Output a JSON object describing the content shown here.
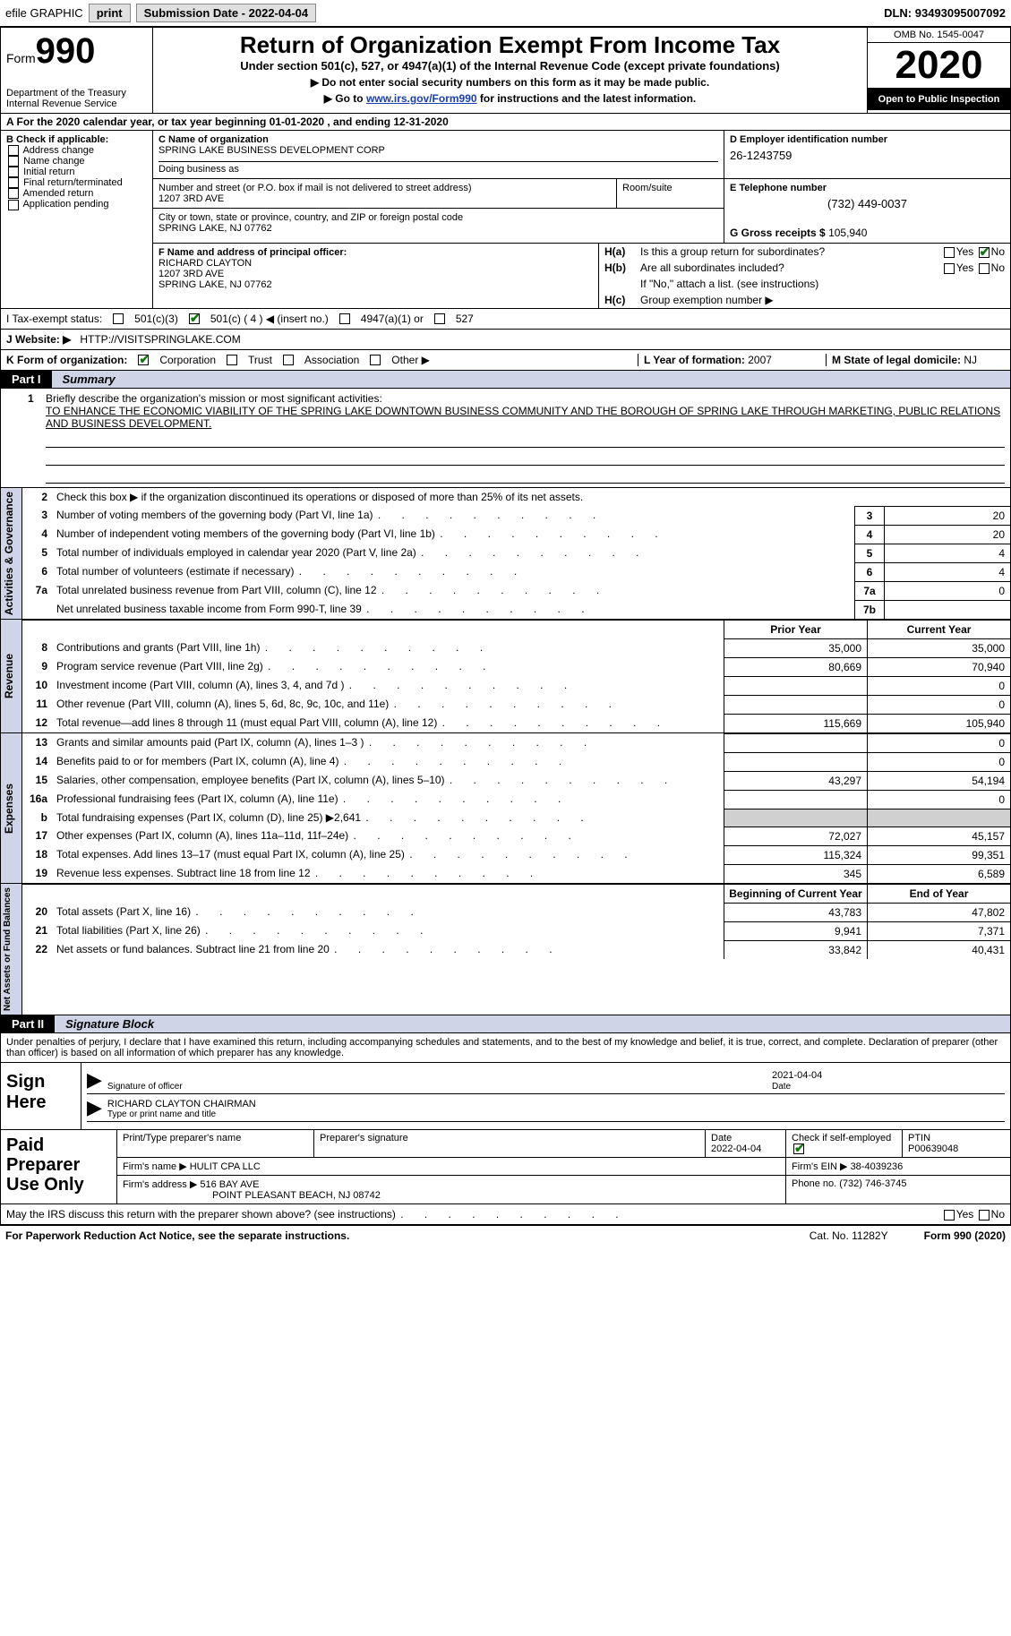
{
  "topbar": {
    "efile": "efile GRAPHIC",
    "print": "print",
    "submission_label": "Submission Date - ",
    "submission_date": "2022-04-04",
    "dln_label": "DLN: ",
    "dln": "93493095007092"
  },
  "header": {
    "form_prefix": "Form",
    "form_number": "990",
    "dept": "Department of the Treasury",
    "irs": "Internal Revenue Service",
    "title": "Return of Organization Exempt From Income Tax",
    "subtitle": "Under section 501(c), 527, or 4947(a)(1) of the Internal Revenue Code (except private foundations)",
    "note1": "▶ Do not enter social security numbers on this form as it may be made public.",
    "note2_prefix": "▶ Go to ",
    "note2_link": "www.irs.gov/Form990",
    "note2_suffix": " for instructions and the latest information.",
    "omb": "OMB No. 1545-0047",
    "year": "2020",
    "open": "Open to Public Inspection"
  },
  "rowA": "A For the 2020 calendar year, or tax year beginning 01-01-2020    , and ending 12-31-2020",
  "secB": {
    "hdr": "B Check if applicable:",
    "opts": [
      "Address change",
      "Name change",
      "Initial return",
      "Final return/terminated",
      "Amended return",
      "Application pending"
    ]
  },
  "secC": {
    "name_lbl": "C Name of organization",
    "name": "SPRING LAKE BUSINESS DEVELOPMENT CORP",
    "dba_lbl": "Doing business as",
    "addr_lbl": "Number and street (or P.O. box if mail is not delivered to street address)",
    "addr": "1207 3RD AVE",
    "room_lbl": "Room/suite",
    "city_lbl": "City or town, state or province, country, and ZIP or foreign postal code",
    "city": "SPRING LAKE, NJ  07762"
  },
  "secD": {
    "lbl": "D Employer identification number",
    "val": "26-1243759"
  },
  "secE": {
    "lbl": "E Telephone number",
    "val": "(732) 449-0037"
  },
  "secG": {
    "lbl": "G Gross receipts $ ",
    "val": "105,940"
  },
  "secF": {
    "lbl": "F Name and address of principal officer:",
    "name": "RICHARD CLAYTON",
    "addr1": "1207 3RD AVE",
    "addr2": "SPRING LAKE, NJ  07762"
  },
  "secH": {
    "a_lbl": "H(a)",
    "a_txt": "Is this a group return for subordinates?",
    "b_lbl": "H(b)",
    "b_txt": "Are all subordinates included?",
    "b_note": "If \"No,\" attach a list. (see instructions)",
    "c_lbl": "H(c)",
    "c_txt": "Group exemption number ▶",
    "yes": "Yes",
    "no": "No"
  },
  "lineI": {
    "lbl": "I    Tax-exempt status:",
    "o1": "501(c)(3)",
    "o2": "501(c) ( 4 ) ◀ (insert no.)",
    "o3": "4947(a)(1) or",
    "o4": "527"
  },
  "lineJ": {
    "lbl": "J   Website: ▶  ",
    "val": "HTTP://VISITSPRINGLAKE.COM"
  },
  "lineK": {
    "lbl": "K Form of organization:",
    "o1": "Corporation",
    "o2": "Trust",
    "o3": "Association",
    "o4": "Other ▶"
  },
  "lineL": {
    "lbl": "L Year of formation: ",
    "val": "2007"
  },
  "lineM": {
    "lbl": "M State of legal domicile: ",
    "val": "NJ"
  },
  "part1": {
    "tag": "Part I",
    "title": "Summary"
  },
  "mission": {
    "num": "1",
    "lead": "Briefly describe the organization's mission or most significant activities:",
    "txt": "TO ENHANCE THE ECONOMIC VIABILITY OF THE SPRING LAKE DOWNTOWN BUSINESS COMMUNITY AND THE BOROUGH OF SPRING LAKE THROUGH MARKETING, PUBLIC RELATIONS AND BUSINESS DEVELOPMENT."
  },
  "gov": {
    "label": "Activities & Governance",
    "l2": "Check this box ▶        if the organization discontinued its operations or disposed of more than 25% of its net assets.",
    "rows": [
      {
        "n": "3",
        "d": "Number of voting members of the governing body (Part VI, line 1a)",
        "box": "3",
        "v": "20"
      },
      {
        "n": "4",
        "d": "Number of independent voting members of the governing body (Part VI, line 1b)",
        "box": "4",
        "v": "20"
      },
      {
        "n": "5",
        "d": "Total number of individuals employed in calendar year 2020 (Part V, line 2a)",
        "box": "5",
        "v": "4"
      },
      {
        "n": "6",
        "d": "Total number of volunteers (estimate if necessary)",
        "box": "6",
        "v": "4"
      },
      {
        "n": "7a",
        "d": "Total unrelated business revenue from Part VIII, column (C), line 12",
        "box": "7a",
        "v": "0"
      },
      {
        "n": "",
        "d": "Net unrelated business taxable income from Form 990-T, line 39",
        "box": "7b",
        "v": ""
      }
    ]
  },
  "cols": {
    "prior": "Prior Year",
    "current": "Current Year",
    "begin": "Beginning of Current Year",
    "end": "End of Year"
  },
  "rev": {
    "label": "Revenue",
    "rows": [
      {
        "n": "8",
        "d": "Contributions and grants (Part VIII, line 1h)",
        "p": "35,000",
        "c": "35,000"
      },
      {
        "n": "9",
        "d": "Program service revenue (Part VIII, line 2g)",
        "p": "80,669",
        "c": "70,940"
      },
      {
        "n": "10",
        "d": "Investment income (Part VIII, column (A), lines 3, 4, and 7d )",
        "p": "",
        "c": "0"
      },
      {
        "n": "11",
        "d": "Other revenue (Part VIII, column (A), lines 5, 6d, 8c, 9c, 10c, and 11e)",
        "p": "",
        "c": "0"
      },
      {
        "n": "12",
        "d": "Total revenue—add lines 8 through 11 (must equal Part VIII, column (A), line 12)",
        "p": "115,669",
        "c": "105,940"
      }
    ]
  },
  "exp": {
    "label": "Expenses",
    "rows": [
      {
        "n": "13",
        "d": "Grants and similar amounts paid (Part IX, column (A), lines 1–3 )",
        "p": "",
        "c": "0"
      },
      {
        "n": "14",
        "d": "Benefits paid to or for members (Part IX, column (A), line 4)",
        "p": "",
        "c": "0"
      },
      {
        "n": "15",
        "d": "Salaries, other compensation, employee benefits (Part IX, column (A), lines 5–10)",
        "p": "43,297",
        "c": "54,194"
      },
      {
        "n": "16a",
        "d": "Professional fundraising fees (Part IX, column (A), line 11e)",
        "p": "",
        "c": "0"
      },
      {
        "n": "b",
        "d": "Total fundraising expenses (Part IX, column (D), line 25) ▶2,641",
        "p": "SHADE",
        "c": "SHADE"
      },
      {
        "n": "17",
        "d": "Other expenses (Part IX, column (A), lines 11a–11d, 11f–24e)",
        "p": "72,027",
        "c": "45,157"
      },
      {
        "n": "18",
        "d": "Total expenses. Add lines 13–17 (must equal Part IX, column (A), line 25)",
        "p": "115,324",
        "c": "99,351"
      },
      {
        "n": "19",
        "d": "Revenue less expenses. Subtract line 18 from line 12",
        "p": "345",
        "c": "6,589"
      }
    ]
  },
  "net": {
    "label": "Net Assets or Fund Balances",
    "rows": [
      {
        "n": "20",
        "d": "Total assets (Part X, line 16)",
        "p": "43,783",
        "c": "47,802"
      },
      {
        "n": "21",
        "d": "Total liabilities (Part X, line 26)",
        "p": "9,941",
        "c": "7,371"
      },
      {
        "n": "22",
        "d": "Net assets or fund balances. Subtract line 21 from line 20",
        "p": "33,842",
        "c": "40,431"
      }
    ]
  },
  "part2": {
    "tag": "Part II",
    "title": "Signature Block"
  },
  "sig_intro": "Under penalties of perjury, I declare that I have examined this return, including accompanying schedules and statements, and to the best of my knowledge and belief, it is true, correct, and complete. Declaration of preparer (other than officer) is based on all information of which preparer has any knowledge.",
  "sign": {
    "left": "Sign Here",
    "officer_lbl": "Signature of officer",
    "date": "2021-04-04",
    "date_lbl": "Date",
    "name": "RICHARD CLAYTON CHAIRMAN",
    "name_lbl": "Type or print name and title"
  },
  "paid": {
    "left": "Paid Preparer Use Only",
    "h1": "Print/Type preparer's name",
    "h2": "Preparer's signature",
    "h3_lbl": "Date",
    "h3_val": "2022-04-04",
    "h4_lbl": "Check          if self-employed",
    "h5_lbl": "PTIN",
    "h5_val": "P00639048",
    "firm_name_lbl": "Firm's name    ▶ ",
    "firm_name": "HULIT CPA LLC",
    "firm_ein_lbl": "Firm's EIN ▶ ",
    "firm_ein": "38-4039236",
    "firm_addr_lbl": "Firm's address ▶ ",
    "firm_addr1": "516 BAY AVE",
    "firm_addr2": "POINT PLEASANT BEACH, NJ  08742",
    "phone_lbl": "Phone no. ",
    "phone": "(732) 746-3745"
  },
  "discuss": {
    "txt": "May the IRS discuss this return with the preparer shown above? (see instructions)",
    "yes": "Yes",
    "no": "No"
  },
  "footer": {
    "left": "For Paperwork Reduction Act Notice, see the separate instructions.",
    "mid": "Cat. No. 11282Y",
    "right": "Form 990 (2020)"
  }
}
